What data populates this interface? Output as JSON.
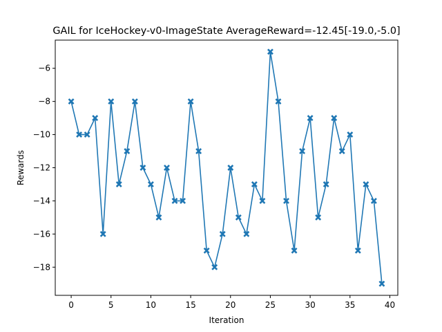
{
  "chart_data": {
    "type": "line",
    "title": "GAIL for IceHockey-v0-ImageState AverageReward=-12.45[-19.0,-5.0]",
    "xlabel": "Iteration",
    "ylabel": "Rewards",
    "xlim": [
      -2,
      41
    ],
    "ylim": [
      -19.7,
      -4.3
    ],
    "xticks": [
      0,
      5,
      10,
      15,
      20,
      25,
      30,
      35,
      40
    ],
    "yticks": [
      -18,
      -16,
      -14,
      -12,
      -10,
      -8,
      -6
    ],
    "xtick_labels": [
      "0",
      "5",
      "10",
      "15",
      "20",
      "25",
      "30",
      "35",
      "40"
    ],
    "ytick_labels": [
      "−18",
      "−16",
      "−14",
      "−12",
      "−10",
      "−8",
      "−6"
    ],
    "grid": false,
    "legend": "none",
    "color": "#1f77b4",
    "marker": "X",
    "series": [
      {
        "x": [
          0,
          1,
          2,
          3,
          4,
          5,
          6,
          7,
          8,
          9,
          10,
          11,
          12,
          13,
          14,
          15,
          16,
          17,
          18,
          19,
          20,
          21,
          22,
          23,
          24,
          25,
          26,
          27,
          28,
          29,
          30,
          31,
          32,
          33,
          34,
          35,
          36,
          37,
          38,
          39
        ],
        "values": [
          -8,
          -10,
          -10,
          -9,
          -16,
          -8,
          -13,
          -11,
          -8,
          -12,
          -13,
          -15,
          -12,
          -14,
          -14,
          -8,
          -11,
          -17,
          -18,
          -16,
          -12,
          -15,
          -16,
          -13,
          -14,
          -5,
          -8,
          -14,
          -17,
          -11,
          -9,
          -15,
          -13,
          -9,
          -11,
          -10,
          -17,
          -13,
          -14,
          -19
        ]
      }
    ]
  }
}
